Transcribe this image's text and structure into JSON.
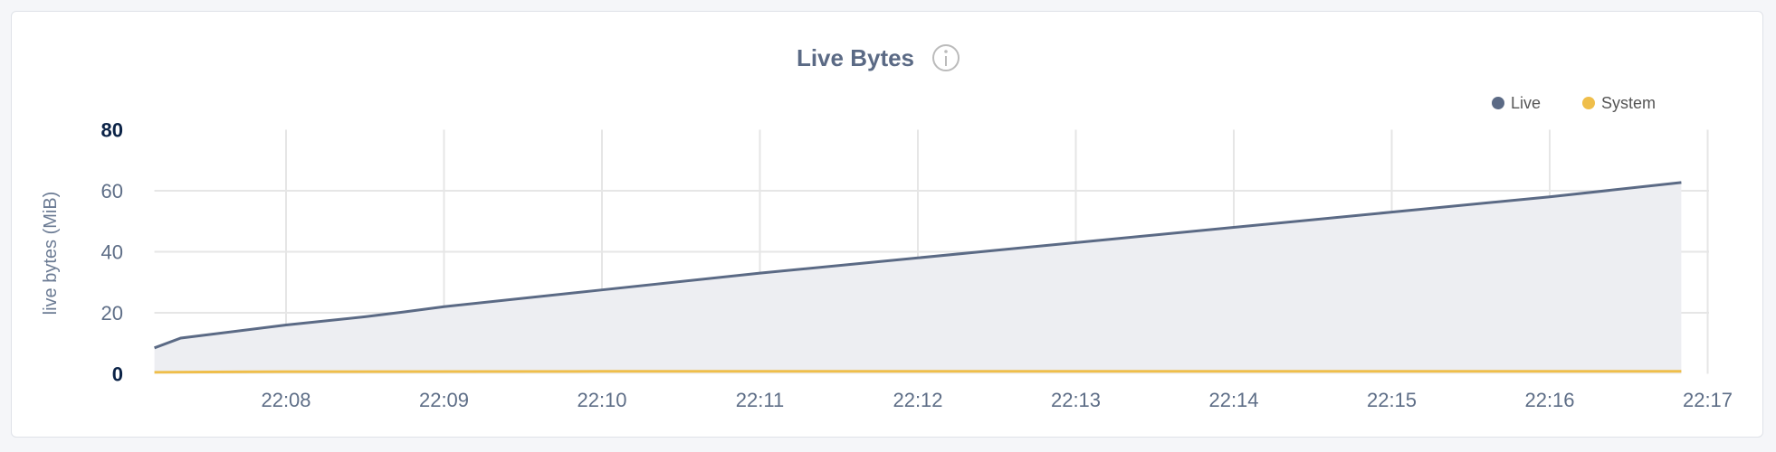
{
  "chart_data": {
    "type": "area",
    "title": "Live Bytes",
    "title_icon": "info-icon",
    "ylabel": "live bytes (MiB)",
    "xlabel": "",
    "ylim": [
      0,
      80
    ],
    "yticks": [
      "0",
      "20",
      "40",
      "60",
      "80"
    ],
    "xticks": [
      "22:08",
      "22:09",
      "22:10",
      "22:11",
      "22:12",
      "22:13",
      "22:14",
      "22:15",
      "22:16",
      "22:17"
    ],
    "xlim": [
      "22:07:10",
      "22:17:00"
    ],
    "grid": true,
    "legend_position": "top-right",
    "series": [
      {
        "name": "Live",
        "color": "#5b6a85",
        "fill": "#edeef2",
        "points": [
          [
            "22:07:10",
            8.5
          ],
          [
            "22:07:20",
            11.7
          ],
          [
            "22:08:00",
            16
          ],
          [
            "22:08:30",
            18.7
          ],
          [
            "22:08:45",
            20.3
          ],
          [
            "22:09:00",
            22
          ],
          [
            "22:10:00",
            27.5
          ],
          [
            "22:11:00",
            33
          ],
          [
            "22:12:00",
            38
          ],
          [
            "22:13:00",
            43
          ],
          [
            "22:14:00",
            48
          ],
          [
            "22:15:00",
            53
          ],
          [
            "22:16:00",
            58
          ],
          [
            "22:16:50",
            62.7
          ]
        ]
      },
      {
        "name": "System",
        "color": "#efbe4a",
        "points": [
          [
            "22:07:10",
            0.5
          ],
          [
            "22:08:00",
            0.7
          ],
          [
            "22:10:00",
            0.8
          ],
          [
            "22:16:50",
            0.8
          ]
        ]
      }
    ]
  }
}
